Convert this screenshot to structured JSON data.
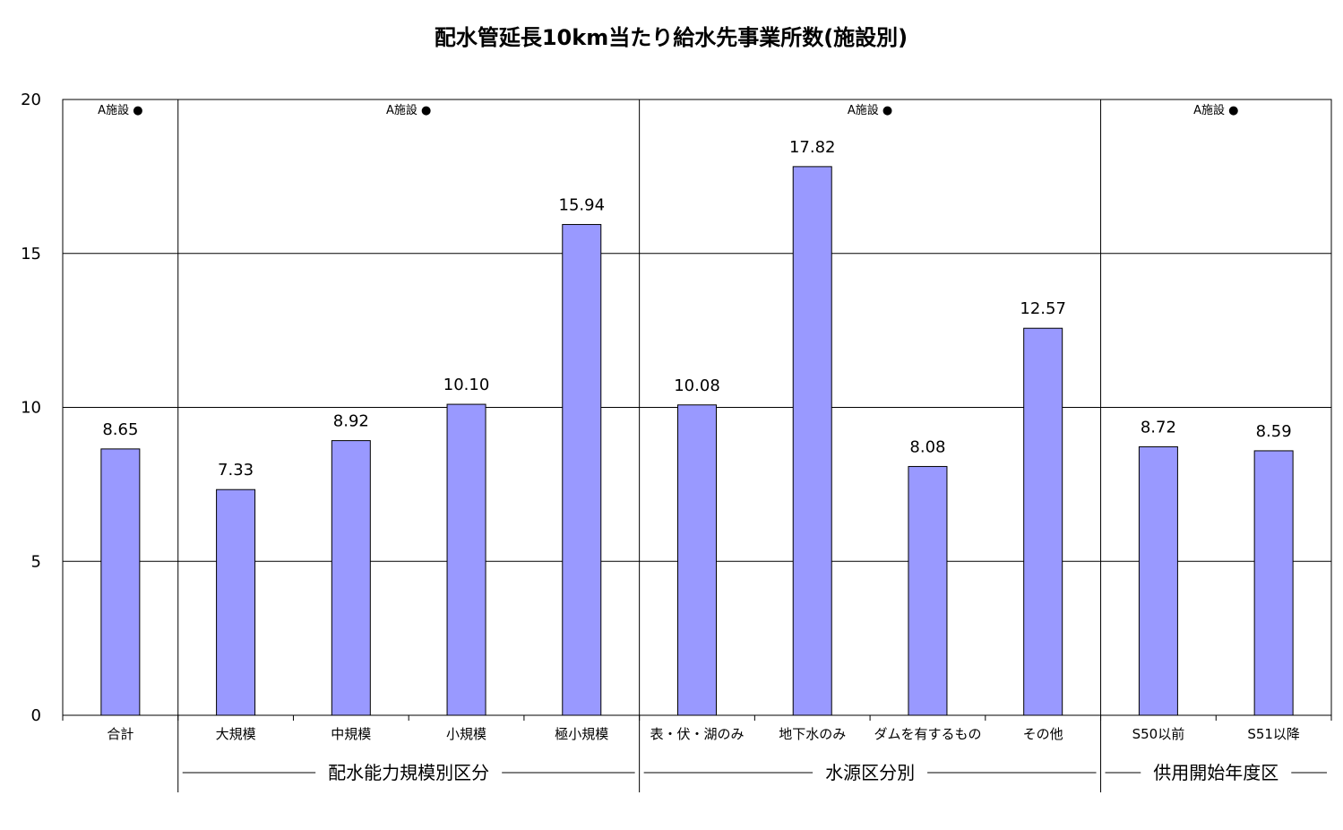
{
  "chart_data": {
    "type": "bar",
    "title": "配水管延長10km当たり給水先事業所数(施設別)",
    "xlabel": "",
    "ylabel": "",
    "ylim": [
      0,
      20
    ],
    "yticks": [
      0,
      5,
      10,
      15,
      20
    ],
    "grid": true,
    "legend": "none",
    "bar_color": "#9999ff",
    "categories": [
      "合計",
      "大規模",
      "中規模",
      "小規模",
      "極小規模",
      "表・伏・湖のみ",
      "地下水のみ",
      "ダムを有するもの",
      "その他",
      "S50以前",
      "S51以降"
    ],
    "values": [
      8.65,
      7.33,
      8.92,
      10.1,
      15.94,
      10.08,
      17.82,
      8.08,
      12.57,
      8.72,
      8.59
    ],
    "value_labels": [
      "8.65",
      "7.33",
      "8.92",
      "10.10",
      "15.94",
      "10.08",
      "17.82",
      "8.08",
      "12.57",
      "8.72",
      "8.59"
    ],
    "panels": [
      {
        "marker": "A施設 ●",
        "from": 0,
        "to": 0,
        "group": ""
      },
      {
        "marker": "A施設 ●",
        "from": 1,
        "to": 4,
        "group": "配水能力規模別区分"
      },
      {
        "marker": "A施設 ●",
        "from": 5,
        "to": 8,
        "group": "水源区分別"
      },
      {
        "marker": "A施設 ●",
        "from": 9,
        "to": 10,
        "group": "供用開始年度区"
      }
    ]
  }
}
